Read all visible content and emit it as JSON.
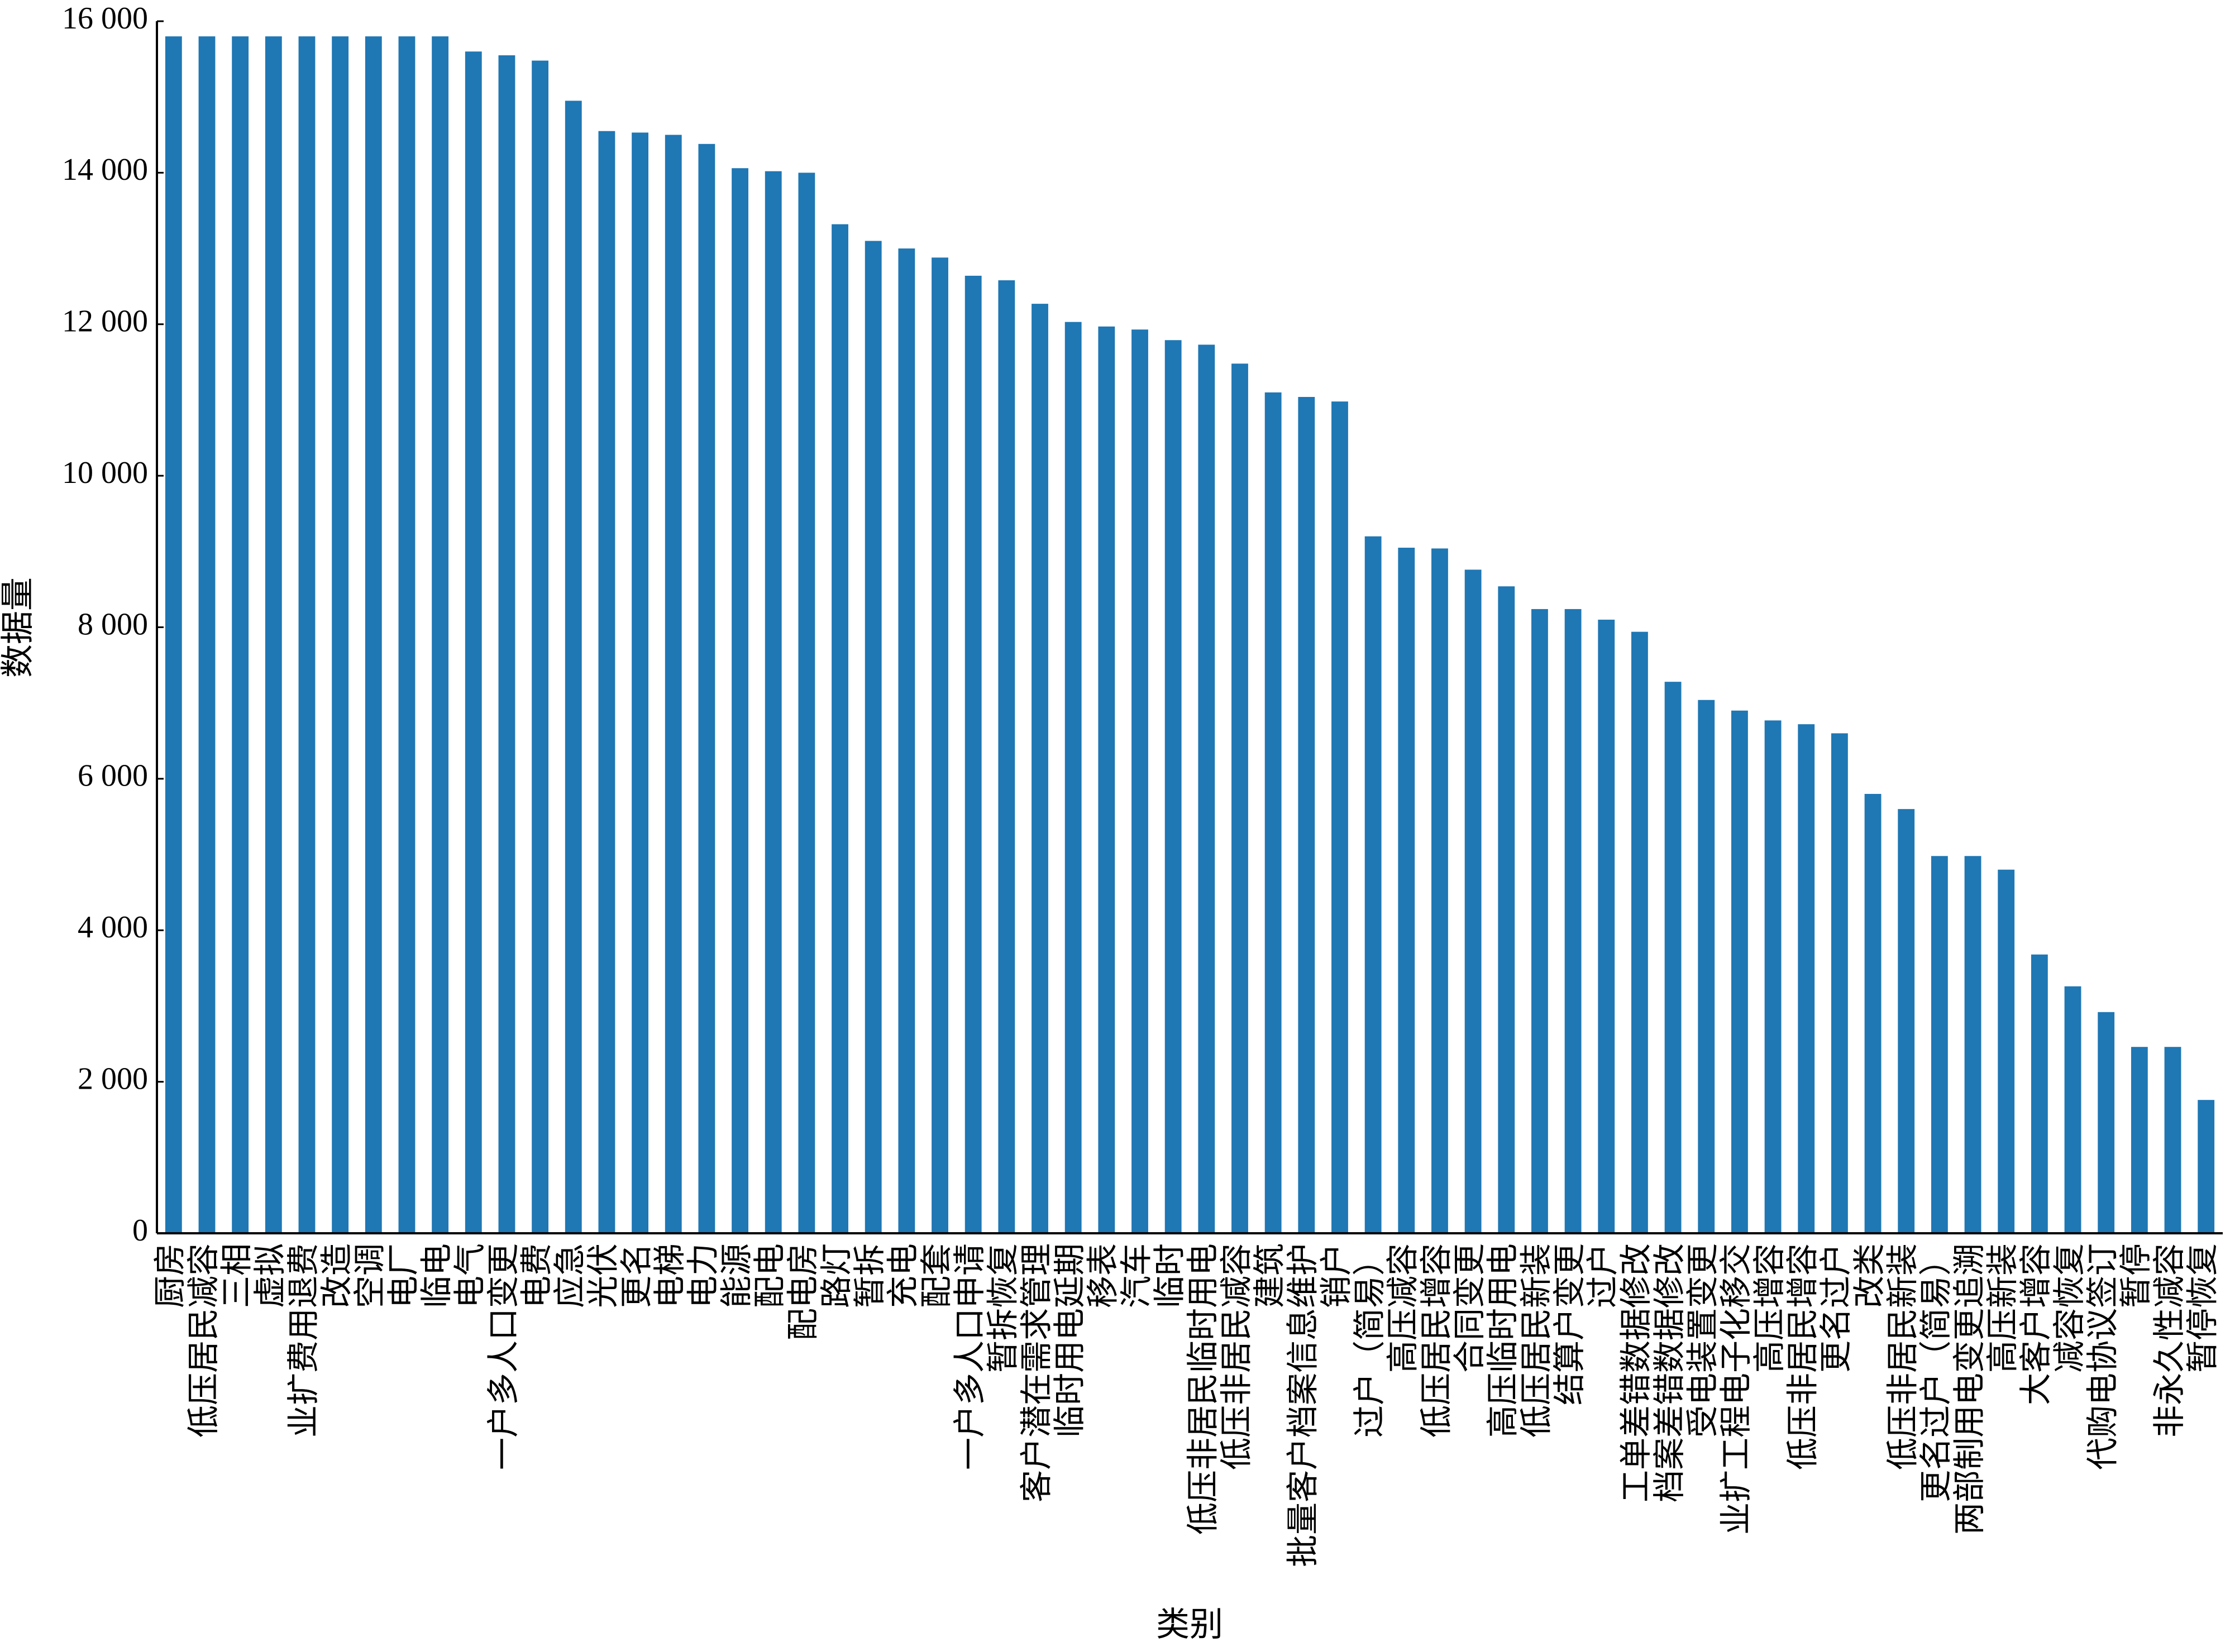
{
  "chart_data": {
    "type": "bar",
    "x_label": "类别",
    "y_label": "数据量",
    "color": "#1f77b4",
    "categories": [
      "厨房",
      "低压居民减容",
      "三相",
      "虚拟",
      "业扩费用退费",
      "改造",
      "空调",
      "电厂",
      "临电",
      "电气",
      "一户多人口变更",
      "电费",
      "应急",
      "光伏",
      "更名",
      "电梯",
      "电力",
      "能源",
      "配电",
      "配电房",
      "路灯",
      "暂拆",
      "充电",
      "配套",
      "一户多人口申请",
      "暂拆恢复",
      "客户潜在需求管理",
      "临时用电延期",
      "移表",
      "汽车",
      "临时",
      "低压非居民临时用电",
      "低压非居民减容",
      "建筑",
      "批量客户档案信息维护",
      "销户",
      "过户（简易）",
      "高压减容",
      "低压居民增容",
      "合同变更",
      "高压临时用电",
      "低压居民新装",
      "结算户变更",
      "过户",
      "工单差错数据修改",
      "档案差错数据修改",
      "受电装置变更",
      "业扩工程电子化移交",
      "高压增容",
      "低压非居民增容",
      "更名过户",
      "改类",
      "低压非居民新装",
      "更名过户（简易）",
      "两部制用电变更追溯",
      "高压新装",
      "大客户增容",
      "减容恢复",
      "代购电协议签订",
      "暂停",
      "非永久性减容",
      "暂停恢复"
    ],
    "values": [
      15800,
      15800,
      15800,
      15800,
      15800,
      15800,
      15800,
      15800,
      15800,
      15600,
      15550,
      15480,
      14950,
      14550,
      14530,
      14500,
      14380,
      14060,
      14020,
      14000,
      13320,
      13100,
      13000,
      12880,
      12640,
      12580,
      12270,
      12030,
      11970,
      11930,
      11790,
      11730,
      11480,
      11100,
      11040,
      10980,
      9200,
      9050,
      9040,
      8760,
      8540,
      8240,
      8240,
      8100,
      7940,
      7280,
      7040,
      6900,
      6770,
      6720,
      6600,
      5800,
      5600,
      4980,
      4980,
      4800,
      3680,
      3260,
      2920,
      2460,
      2460,
      1760
    ],
    "ylim": [
      0,
      16000
    ],
    "yticks": [
      0,
      {
        "value": 2000,
        "label": "2 000"
      },
      {
        "value": 4000,
        "label": "4 000"
      },
      {
        "value": 6000,
        "label": "6 000"
      },
      {
        "value": 8000,
        "label": "8 000"
      },
      {
        "value": 10000,
        "label": "10 000"
      },
      {
        "value": 12000,
        "label": "12 000"
      },
      {
        "value": 14000,
        "label": "14 000"
      },
      {
        "value": 16000,
        "label": "16 000"
      }
    ]
  }
}
